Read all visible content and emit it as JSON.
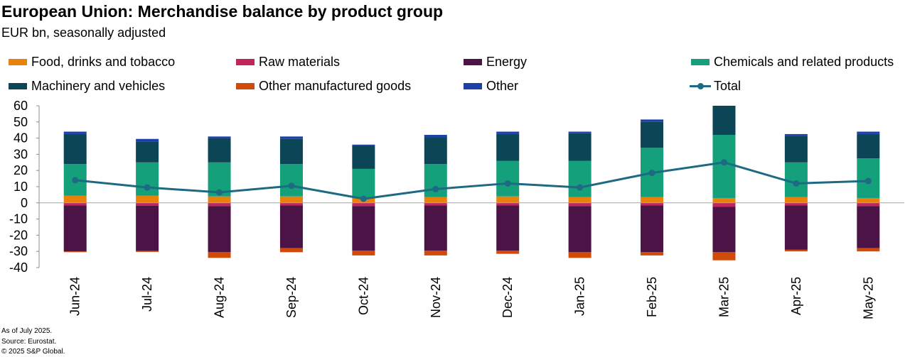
{
  "chart_data": {
    "type": "bar",
    "stacked": true,
    "title": "European Union: Merchandise balance by product group",
    "subtitle": "EUR bn, seasonally adjusted",
    "categories": [
      "Jun-24",
      "Jul-24",
      "Aug-24",
      "Sep-24",
      "Oct-24",
      "Nov-24",
      "Dec-24",
      "Jan-25",
      "Feb-25",
      "Mar-25",
      "Apr-25",
      "May-25"
    ],
    "ylim": [
      -40,
      60
    ],
    "yticks": [
      -40,
      -30,
      -20,
      -10,
      0,
      10,
      20,
      30,
      40,
      50,
      60
    ],
    "series": [
      {
        "name": "Food, drinks and tobacco",
        "color": "#E8820C",
        "values": [
          4.5,
          4.5,
          4,
          4,
          3,
          3.5,
          4,
          3.5,
          3.5,
          3,
          3.5,
          3
        ]
      },
      {
        "name": "Raw materials",
        "color": "#C2245B",
        "values": [
          -1.5,
          -1.8,
          -2,
          -1.5,
          -2,
          -1.5,
          -1.5,
          -2,
          -1.5,
          -2.5,
          -1.5,
          -2
        ]
      },
      {
        "name": "Energy",
        "color": "#4C1446",
        "values": [
          -28.5,
          -28,
          -28.5,
          -26.5,
          -27.5,
          -28,
          -28,
          -28.5,
          -29,
          -28,
          -27.5,
          -26
        ]
      },
      {
        "name": "Chemicals and related products",
        "color": "#13A07B",
        "values": [
          19.5,
          20.5,
          21,
          20,
          18,
          20.5,
          22,
          22.5,
          30.5,
          39,
          21.5,
          24.5
        ]
      },
      {
        "name": "Machinery and vehicles",
        "color": "#0B4556",
        "values": [
          18.5,
          13,
          15,
          15.5,
          14.5,
          16.5,
          16.5,
          17,
          16,
          18,
          16.5,
          15
        ]
      },
      {
        "name": "Other manufactured goods",
        "color": "#D04A0A",
        "values": [
          -0.5,
          -0.5,
          -3.5,
          -2.5,
          -3,
          -3,
          -2,
          -3.5,
          -2,
          -5,
          -1,
          -2
        ]
      },
      {
        "name": "Other",
        "color": "#1C3FA8",
        "values": [
          1.5,
          1.5,
          1,
          1.5,
          0.5,
          1.5,
          1.5,
          1,
          1.5,
          0,
          1,
          1.5
        ]
      }
    ],
    "line": {
      "name": "Total",
      "color": "#1D6A82",
      "values": [
        14,
        9.5,
        6.5,
        10.5,
        2.5,
        8.5,
        12,
        9.5,
        18.5,
        25,
        12,
        13.5
      ]
    }
  },
  "footer": {
    "line1": "As of July 2025.",
    "line2": "Source: Eurostat.",
    "line3": "© 2025 S&P Global."
  }
}
